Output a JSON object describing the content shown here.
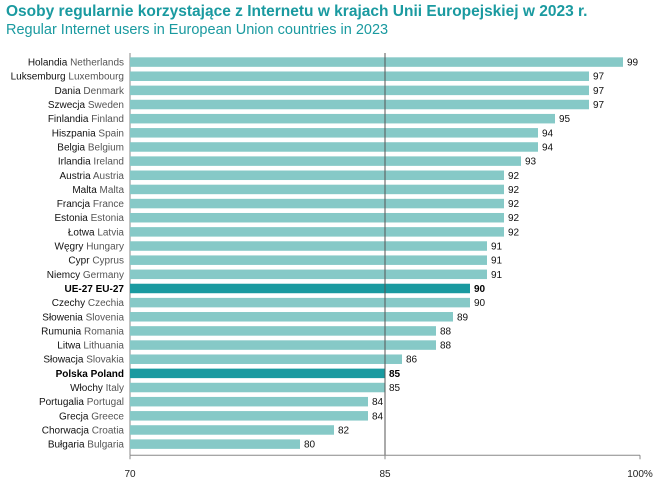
{
  "title_pl": "Osoby regularnie korzystające z Internetu w krajach Unii Europejskiej w 2023 r.",
  "title_en": "Regular Internet users in European Union countries in 2023",
  "colors": {
    "bar": "#86c9c7",
    "highlight": "#1a9aa0",
    "title": "#1a9aa0",
    "axis": "#888888"
  },
  "chart_data": {
    "type": "bar",
    "orientation": "horizontal",
    "categories_pl": [
      "Holandia",
      "Luksemburg",
      "Dania",
      "Szwecja",
      "Finlandia",
      "Hiszpania",
      "Belgia",
      "Irlandia",
      "Austria",
      "Malta",
      "Francja",
      "Estonia",
      "Łotwa",
      "Węgry",
      "Cypr",
      "Niemcy",
      "UE-27",
      "Czechy",
      "Słowenia",
      "Rumunia",
      "Litwa",
      "Słowacja",
      "Polska",
      "Włochy",
      "Portugalia",
      "Grecja",
      "Chorwacja",
      "Bułgaria"
    ],
    "categories_en": [
      "Netherlands",
      "Luxembourg",
      "Denmark",
      "Sweden",
      "Finland",
      "Spain",
      "Belgium",
      "Ireland",
      "Austria",
      "Malta",
      "France",
      "Estonia",
      "Latvia",
      "Hungary",
      "Cyprus",
      "Germany",
      "EU-27",
      "Czechia",
      "Slovenia",
      "Romania",
      "Lithuania",
      "Slovakia",
      "Poland",
      "Italy",
      "Portugal",
      "Greece",
      "Croatia",
      "Bulgaria"
    ],
    "values": [
      99,
      97,
      97,
      97,
      95,
      94,
      94,
      93,
      92,
      92,
      92,
      92,
      92,
      91,
      91,
      91,
      90,
      90,
      89,
      88,
      88,
      86,
      85,
      85,
      84,
      84,
      82,
      80
    ],
    "highlighted": [
      "UE-27",
      "Polska"
    ],
    "xlim": [
      70,
      100
    ],
    "xticks": [
      "70",
      "85",
      "100%"
    ],
    "reference_line": 85,
    "grid": false
  }
}
